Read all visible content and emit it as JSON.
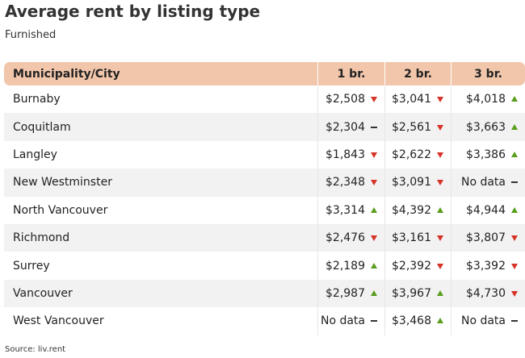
{
  "header": {
    "title": "Average rent by listing type",
    "subtitle": "Furnished"
  },
  "table": {
    "columns": [
      "Municipality/City",
      "1 br.",
      "2 br.",
      "3 br."
    ],
    "rows": [
      {
        "name": "Burnaby",
        "cells": [
          {
            "text": "$2,508",
            "trend": "down"
          },
          {
            "text": "$3,041",
            "trend": "down"
          },
          {
            "text": "$4,018",
            "trend": "up"
          }
        ]
      },
      {
        "name": "Coquitlam",
        "cells": [
          {
            "text": "$2,304",
            "trend": "flat"
          },
          {
            "text": "$2,561",
            "trend": "down"
          },
          {
            "text": "$3,663",
            "trend": "up"
          }
        ]
      },
      {
        "name": "Langley",
        "cells": [
          {
            "text": "$1,843",
            "trend": "down"
          },
          {
            "text": "$2,622",
            "trend": "down"
          },
          {
            "text": "$3,386",
            "trend": "up"
          }
        ]
      },
      {
        "name": "New Westminster",
        "cells": [
          {
            "text": "$2,348",
            "trend": "down"
          },
          {
            "text": "$3,091",
            "trend": "down"
          },
          {
            "text": "No data",
            "trend": "flat"
          }
        ]
      },
      {
        "name": "North Vancouver",
        "cells": [
          {
            "text": "$3,314",
            "trend": "up"
          },
          {
            "text": "$4,392",
            "trend": "up"
          },
          {
            "text": "$4,944",
            "trend": "up"
          }
        ]
      },
      {
        "name": "Richmond",
        "cells": [
          {
            "text": "$2,476",
            "trend": "down"
          },
          {
            "text": "$3,161",
            "trend": "down"
          },
          {
            "text": "$3,807",
            "trend": "down"
          }
        ]
      },
      {
        "name": "Surrey",
        "cells": [
          {
            "text": "$2,189",
            "trend": "up"
          },
          {
            "text": "$2,392",
            "trend": "down"
          },
          {
            "text": "$3,392",
            "trend": "down"
          }
        ]
      },
      {
        "name": "Vancouver",
        "cells": [
          {
            "text": "$2,987",
            "trend": "up"
          },
          {
            "text": "$3,967",
            "trend": "up"
          },
          {
            "text": "$4,730",
            "trend": "down"
          }
        ]
      },
      {
        "name": "West Vancouver",
        "cells": [
          {
            "text": "No data",
            "trend": "flat"
          },
          {
            "text": "$3,468",
            "trend": "up"
          },
          {
            "text": "No data",
            "trend": "flat"
          }
        ]
      }
    ]
  },
  "footer": {
    "source": "Source: liv.rent"
  }
}
